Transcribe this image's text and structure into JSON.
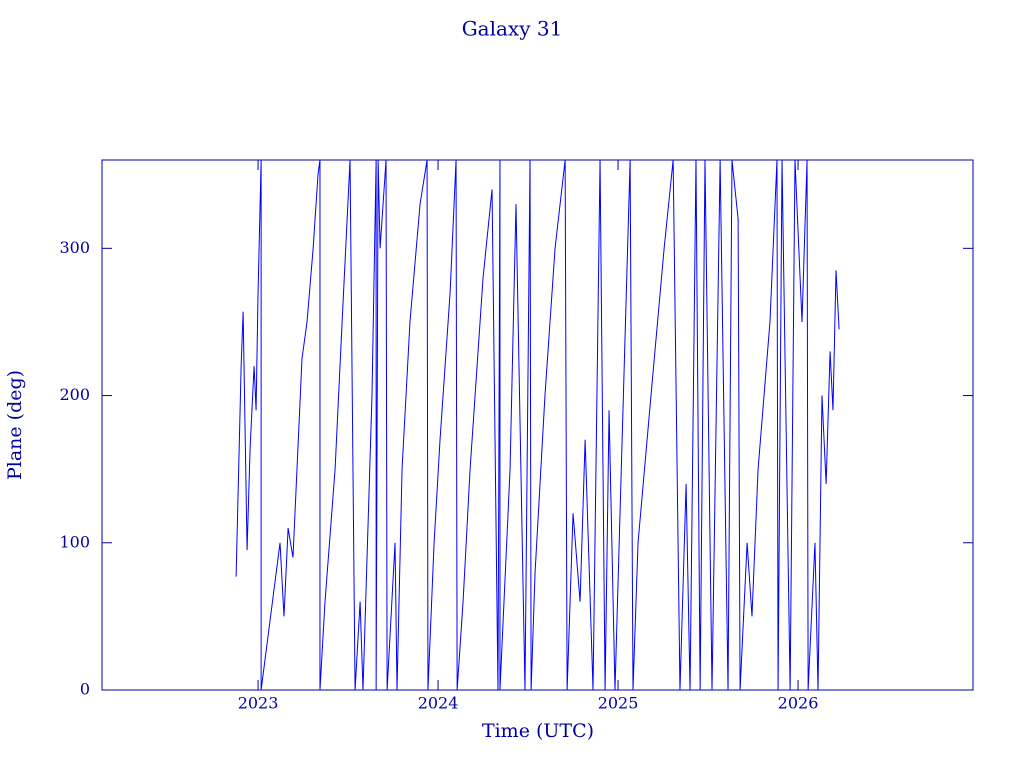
{
  "chart_data": {
    "type": "line",
    "title": "Galaxy 31",
    "x_label": "Time (UTC)",
    "y_label": "Plane (deg)",
    "xlim": [
      2022.133,
      2026.972
    ],
    "ylim": [
      0,
      360
    ],
    "xticks": [
      2023,
      2024,
      2025,
      2026
    ],
    "yticks": [
      0,
      100,
      200,
      300
    ],
    "series": [
      {
        "color": "#0000ff",
        "x": [
          2022.878,
          2022.906,
          2022.917,
          2022.939,
          2022.956,
          2022.978,
          2022.989,
          2023.0,
          2023.017,
          2023.017,
          2023.122,
          2023.144,
          2023.167,
          2023.194,
          2023.244,
          2023.272,
          2023.306,
          2023.333,
          2023.344,
          2023.344,
          2023.372,
          2023.428,
          2023.467,
          2023.511,
          2023.539,
          2023.567,
          2023.583,
          2023.633,
          2023.656,
          2023.656,
          2023.667,
          2023.678,
          2023.711,
          2023.717,
          2023.761,
          2023.772,
          2023.8,
          2023.844,
          2023.9,
          2023.939,
          2023.944,
          2023.978,
          2024.011,
          2024.067,
          2024.1,
          2024.106,
          2024.139,
          2024.178,
          2024.25,
          2024.3,
          2024.333,
          2024.344,
          2024.344,
          2024.4,
          2024.433,
          2024.483,
          2024.511,
          2024.517,
          2024.539,
          2024.594,
          2024.65,
          2024.706,
          2024.717,
          2024.75,
          2024.789,
          2024.817,
          2024.861,
          2024.9,
          2024.928,
          2024.95,
          2024.983,
          2025.067,
          2025.083,
          2025.111,
          2025.183,
          2025.256,
          2025.306,
          2025.344,
          2025.378,
          2025.4,
          2025.433,
          2025.456,
          2025.483,
          2025.522,
          2025.567,
          2025.611,
          2025.633,
          2025.667,
          2025.678,
          2025.717,
          2025.744,
          2025.778,
          2025.844,
          2025.883,
          2025.889,
          2025.911,
          2025.956,
          2025.983,
          2026.022,
          2026.05,
          2026.056,
          2026.094,
          2026.111,
          2026.133,
          2026.156,
          2026.178,
          2026.194,
          2026.211,
          2026.228
        ],
        "values": [
          77,
          220,
          257,
          95,
          165,
          220,
          190,
          270,
          360,
          0,
          100,
          50,
          110,
          90,
          225,
          250,
          300,
          350,
          360,
          0,
          60,
          150,
          250,
          360,
          0,
          60,
          0,
          200,
          360,
          0,
          360,
          300,
          360,
          0,
          100,
          0,
          150,
          250,
          330,
          360,
          0,
          100,
          170,
          270,
          360,
          0,
          60,
          150,
          280,
          340,
          0,
          360,
          0,
          150,
          330,
          0,
          360,
          0,
          80,
          200,
          300,
          360,
          0,
          120,
          60,
          170,
          0,
          360,
          0,
          190,
          0,
          360,
          0,
          100,
          200,
          300,
          360,
          0,
          140,
          0,
          360,
          0,
          360,
          0,
          360,
          0,
          360,
          320,
          0,
          100,
          50,
          150,
          250,
          360,
          0,
          360,
          0,
          360,
          250,
          360,
          0,
          100,
          0,
          200,
          140,
          230,
          190,
          285,
          245
        ]
      }
    ]
  }
}
